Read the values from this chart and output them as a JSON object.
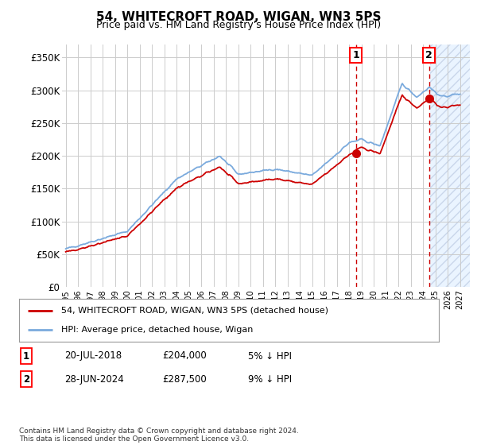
{
  "title": "54, WHITECROFT ROAD, WIGAN, WN3 5PS",
  "subtitle": "Price paid vs. HM Land Registry's House Price Index (HPI)",
  "ylabel_ticks": [
    "£0",
    "£50K",
    "£100K",
    "£150K",
    "£200K",
    "£250K",
    "£300K",
    "£350K"
  ],
  "ytick_values": [
    0,
    50000,
    100000,
    150000,
    200000,
    250000,
    300000,
    350000
  ],
  "ylim": [
    0,
    370000
  ],
  "year_start": 1995,
  "year_end": 2027,
  "hpi_color": "#7aaadd",
  "price_color": "#cc0000",
  "sale1_year_float": 2018.547,
  "sale1_price": 204000,
  "sale2_year_float": 2024.494,
  "sale2_price": 287500,
  "sale1_date": "20-JUL-2018",
  "sale2_date": "28-JUN-2024",
  "sale1_pct": "5% ↓ HPI",
  "sale2_pct": "9% ↓ HPI",
  "legend_line1": "54, WHITECROFT ROAD, WIGAN, WN3 5PS (detached house)",
  "legend_line2": "HPI: Average price, detached house, Wigan",
  "footer": "Contains HM Land Registry data © Crown copyright and database right 2024.\nThis data is licensed under the Open Government Licence v3.0.",
  "background_color": "#ffffff",
  "grid_color": "#cccccc",
  "future_start": 2024.6,
  "xtick_years": [
    1995,
    1996,
    1997,
    1998,
    1999,
    2000,
    2001,
    2002,
    2003,
    2004,
    2005,
    2006,
    2007,
    2008,
    2009,
    2010,
    2011,
    2012,
    2013,
    2014,
    2015,
    2016,
    2017,
    2018,
    2019,
    2020,
    2021,
    2022,
    2023,
    2024,
    2025,
    2026,
    2027
  ]
}
